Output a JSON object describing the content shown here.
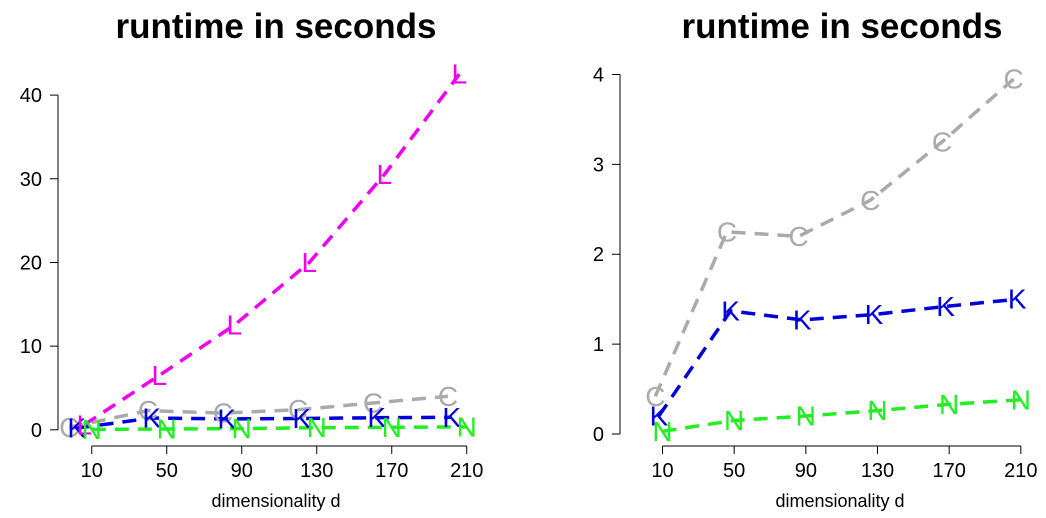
{
  "chart_data": [
    {
      "type": "line",
      "title": "runtime in seconds",
      "xlabel": "dimensionality d",
      "ylabel": "",
      "x_ticks": [
        10,
        50,
        90,
        130,
        170,
        210
      ],
      "y_ticks": [
        0,
        10,
        20,
        30,
        40
      ],
      "xlim": [
        -8,
        216
      ],
      "ylim": [
        -0.5,
        43
      ],
      "grid": false,
      "series": [
        {
          "marker": "C",
          "color": "#aaaaaa",
          "x": [
            -2,
            40,
            80,
            120,
            160,
            200
          ],
          "y": [
            0.3,
            2.3,
            2.0,
            2.4,
            3.2,
            4.0
          ]
        },
        {
          "marker": "K",
          "color": "#0000dd",
          "x": [
            2,
            42,
            82,
            122,
            162,
            202
          ],
          "y": [
            0.2,
            1.4,
            1.3,
            1.35,
            1.45,
            1.5
          ]
        },
        {
          "marker": "L",
          "color": "#ee00ee",
          "x": [
            6,
            46,
            86,
            126,
            166,
            206
          ],
          "y": [
            0.6,
            6.5,
            12.5,
            20.0,
            30.5,
            42.5
          ]
        },
        {
          "marker": "N",
          "color": "#22ee22",
          "x": [
            10,
            50,
            90,
            130,
            170,
            210
          ],
          "y": [
            0.05,
            0.1,
            0.15,
            0.25,
            0.3,
            0.35
          ]
        }
      ]
    },
    {
      "type": "line",
      "title": "runtime in seconds",
      "xlabel": "dimensionality d",
      "ylabel": "",
      "x_ticks": [
        10,
        50,
        90,
        130,
        170,
        210
      ],
      "y_ticks": [
        0,
        1,
        2,
        3,
        4
      ],
      "xlim": [
        -2,
        214
      ],
      "ylim": [
        0,
        4.05
      ],
      "grid": false,
      "series": [
        {
          "marker": "C",
          "color": "#aaaaaa",
          "x": [
            6,
            46,
            86,
            126,
            166,
            206
          ],
          "y": [
            0.42,
            2.25,
            2.2,
            2.6,
            3.25,
            3.95
          ]
        },
        {
          "marker": "K",
          "color": "#0000dd",
          "x": [
            8,
            48,
            88,
            128,
            168,
            208
          ],
          "y": [
            0.2,
            1.37,
            1.27,
            1.33,
            1.42,
            1.5
          ]
        },
        {
          "marker": "N",
          "color": "#22ee22",
          "x": [
            10,
            50,
            90,
            130,
            170,
            210
          ],
          "y": [
            0.03,
            0.15,
            0.2,
            0.26,
            0.33,
            0.38
          ]
        }
      ]
    }
  ]
}
